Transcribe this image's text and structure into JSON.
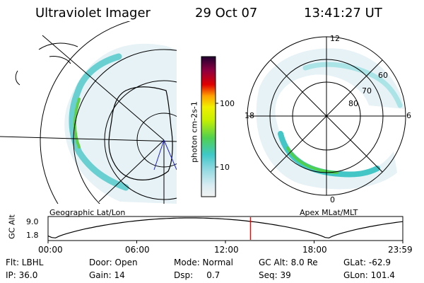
{
  "header": {
    "instrument": "Ultraviolet Imager",
    "date": "29 Oct 07",
    "time": "13:41:27 UT"
  },
  "left_panel": {
    "caption": "Geographic Lat/Lon"
  },
  "right_panel": {
    "caption": "Apex MLat/MLT",
    "mlt_labels": {
      "top": "12",
      "left": "18",
      "right": "6",
      "bottom": "0"
    },
    "mlat_labels": [
      "60",
      "70",
      "80"
    ]
  },
  "colorbar": {
    "unit": "photon cm-2s-1",
    "tick_labels": [
      "100",
      "10"
    ]
  },
  "altitude_plot": {
    "ylabel": "GC Alt",
    "y_ticks": [
      "9.0",
      "1.8"
    ],
    "x_ticks": [
      "00:00",
      "06:00",
      "12:00",
      "18:00",
      "23:59"
    ],
    "marker_color": "#e00000",
    "marker_time_hours": 13.69
  },
  "status": {
    "filter": "Flt: LBHL",
    "ip": "IP: 36.0",
    "door": "Door: Open",
    "gain": "Gain: 14",
    "mode": "Mode: Normal",
    "dsp": "Dsp:     0.7",
    "gc_alt": "GC Alt: 8.0 Re",
    "seq": "Seq: 39",
    "glat": "GLat: -62.9",
    "glon": "GLon: 101.4"
  }
}
